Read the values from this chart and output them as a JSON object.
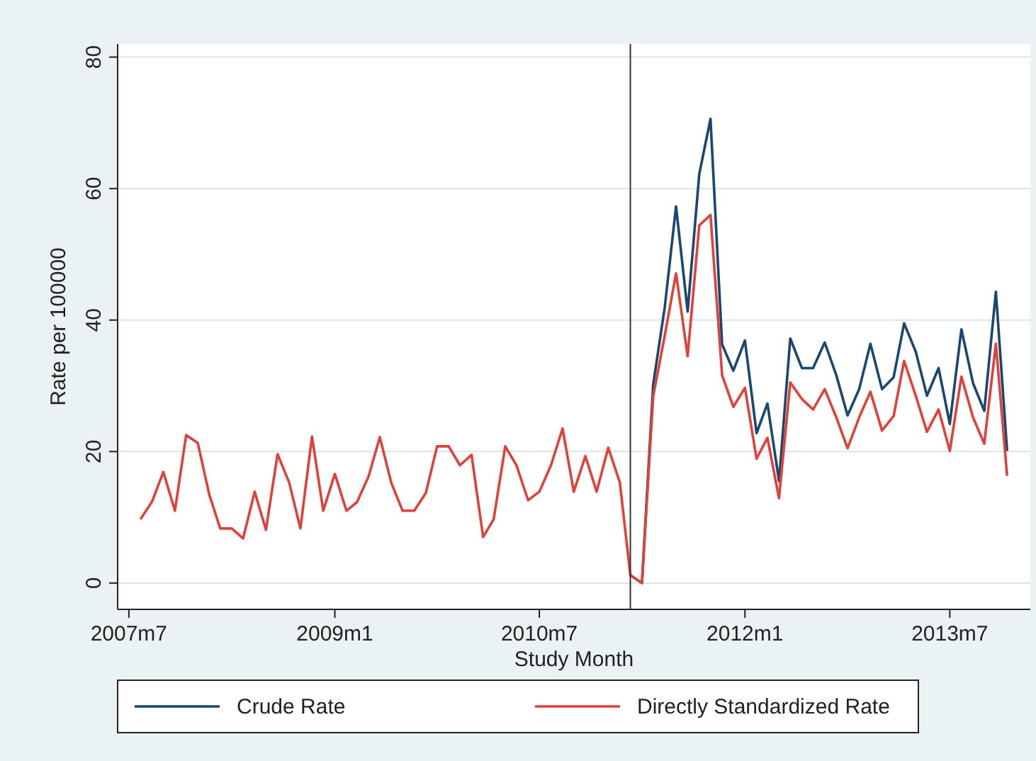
{
  "chart_data": {
    "type": "line",
    "xlabel": "Study Month",
    "ylabel": "Rate per 100000",
    "x": [
      "2007-08",
      "2007-09",
      "2007-10",
      "2007-11",
      "2007-12",
      "2008-01",
      "2008-02",
      "2008-03",
      "2008-04",
      "2008-05",
      "2008-06",
      "2008-07",
      "2008-08",
      "2008-09",
      "2008-10",
      "2008-11",
      "2008-12",
      "2009-01",
      "2009-02",
      "2009-03",
      "2009-04",
      "2009-05",
      "2009-06",
      "2009-07",
      "2009-08",
      "2009-09",
      "2009-10",
      "2009-11",
      "2009-12",
      "2010-01",
      "2010-02",
      "2010-03",
      "2010-04",
      "2010-05",
      "2010-06",
      "2010-07",
      "2010-08",
      "2010-09",
      "2010-10",
      "2010-11",
      "2010-12",
      "2011-01",
      "2011-02",
      "2011-03",
      "2011-04",
      "2011-05",
      "2011-06",
      "2011-07",
      "2011-08",
      "2011-09",
      "2011-10",
      "2011-11",
      "2011-12",
      "2012-01",
      "2012-02",
      "2012-03",
      "2012-04",
      "2012-05",
      "2012-06",
      "2012-07",
      "2012-08",
      "2012-09",
      "2012-10",
      "2012-11",
      "2012-12",
      "2013-01",
      "2013-02",
      "2013-03",
      "2013-04",
      "2013-05",
      "2013-06",
      "2013-07",
      "2013-08",
      "2013-09",
      "2013-10",
      "2013-11",
      "2013-12"
    ],
    "series": [
      {
        "name": "Crude Rate",
        "color": "#1a476f",
        "values": [
          null,
          null,
          null,
          null,
          null,
          null,
          null,
          null,
          null,
          null,
          null,
          null,
          null,
          null,
          null,
          null,
          null,
          null,
          null,
          null,
          null,
          null,
          null,
          null,
          null,
          null,
          null,
          null,
          null,
          null,
          null,
          null,
          null,
          null,
          null,
          null,
          null,
          null,
          null,
          null,
          null,
          null,
          null,
          1.2,
          0,
          30.2,
          42,
          57.3,
          41.3,
          62.2,
          70.6,
          36.3,
          32.3,
          36.9,
          22.8,
          27.3,
          15.5,
          37.2,
          32.7,
          32.7,
          36.6,
          31.6,
          25.5,
          29.5,
          36.4,
          29.5,
          31.3,
          39.5,
          35.2,
          28.5,
          32.7,
          24.2,
          38.6,
          30.4,
          26.2,
          44.3,
          20.1
        ]
      },
      {
        "name": "Directly Standardized Rate",
        "color": "#e0413a",
        "values": [
          9.7,
          12.4,
          16.9,
          11.0,
          22.5,
          21.3,
          13.4,
          8.3,
          8.3,
          6.8,
          13.9,
          8.1,
          19.6,
          15.3,
          8.3,
          22.3,
          11.0,
          16.6,
          11.0,
          12.3,
          16.2,
          22.2,
          15.2,
          11.0,
          11.0,
          13.7,
          20.8,
          20.8,
          17.9,
          19.5,
          7.0,
          9.7,
          20.8,
          17.9,
          12.6,
          13.9,
          17.9,
          23.5,
          13.9,
          19.3,
          13.9,
          20.6,
          15.3,
          1.2,
          0,
          28.4,
          37.7,
          47.1,
          34.5,
          54.4,
          56.0,
          31.6,
          26.8,
          29.7,
          18.9,
          22.1,
          12.9,
          30.5,
          28.0,
          26.4,
          29.5,
          25.2,
          20.5,
          25.2,
          29.1,
          23.2,
          25.4,
          33.8,
          28.5,
          23.0,
          26.4,
          20.1,
          31.4,
          25.2,
          21.2,
          36.4,
          16.3
        ]
      }
    ],
    "xlim": [
      "2007-06",
      "2014-02"
    ],
    "xticks": [
      {
        "value": "2007-07",
        "label": "2007m7"
      },
      {
        "value": "2009-01",
        "label": "2009m1"
      },
      {
        "value": "2010-07",
        "label": "2010m7"
      },
      {
        "value": "2012-01",
        "label": "2012m1"
      },
      {
        "value": "2013-07",
        "label": "2013m7"
      }
    ],
    "ylim": [
      -4,
      82
    ],
    "yticks": [
      0,
      20,
      40,
      60,
      80
    ],
    "grid": "y",
    "legend": "bottom",
    "marker": "none",
    "line_style": "solid",
    "ref_lines": [
      {
        "axis": "x",
        "value": "2011-03",
        "color": "#333333"
      }
    ]
  }
}
